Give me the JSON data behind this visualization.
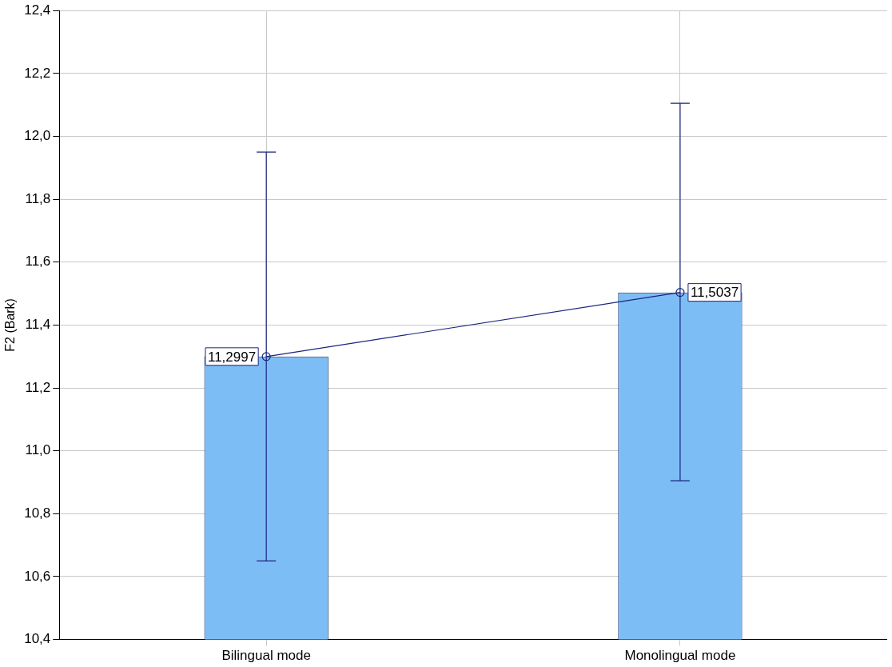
{
  "chart_data": {
    "type": "bar",
    "ylabel": "F2 (Bark)",
    "categories": [
      "Bilingual mode",
      "Monolingual mode"
    ],
    "series": [
      {
        "color": "#7dbdf5",
        "values": [
          11.2997,
          11.5037
        ],
        "errors": [
          [
            10.65,
            11.95
          ],
          [
            10.905,
            12.105
          ]
        ],
        "value_labels": [
          "11,2997",
          "11,5037"
        ]
      },
      {
        "type": "line",
        "color": "#1a237e",
        "values": [
          11.2997,
          11.5037
        ]
      }
    ],
    "marker": "circle",
    "ylim": [
      10.4,
      12.4
    ],
    "yticks": [
      {
        "value": 10.4,
        "label": "10,4"
      },
      {
        "value": 10.6,
        "label": "10,6"
      },
      {
        "value": 10.8,
        "label": "10,8"
      },
      {
        "value": 11.0,
        "label": "11,0"
      },
      {
        "value": 11.2,
        "label": "11,2"
      },
      {
        "value": 11.4,
        "label": "11,4"
      },
      {
        "value": 11.6,
        "label": "11,6"
      },
      {
        "value": 11.8,
        "label": "11,8"
      },
      {
        "value": 12.0,
        "label": "12,0"
      },
      {
        "value": 12.2,
        "label": "12,2"
      },
      {
        "value": 12.4,
        "label": "12,4"
      }
    ],
    "grid": true,
    "legend": false
  }
}
